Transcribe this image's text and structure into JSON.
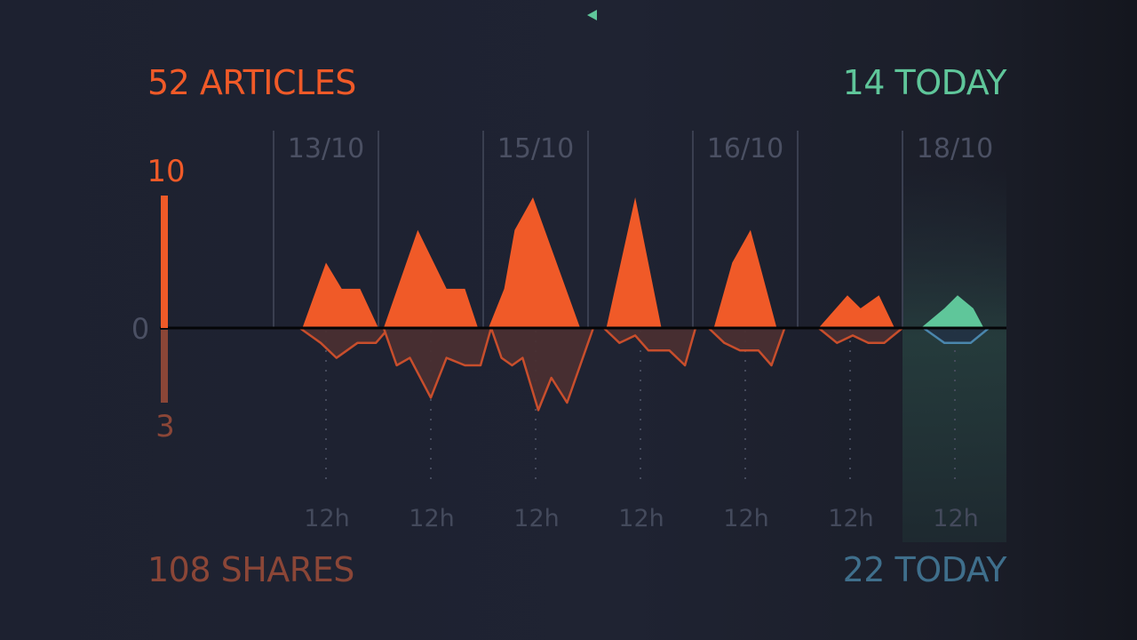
{
  "header": {
    "articles_total": "52 ARTICLES",
    "articles_today": "14 TODAY"
  },
  "footer": {
    "shares_total": "108 SHARES",
    "shares_today": "22 TODAY"
  },
  "colors": {
    "articles": "#f05a28",
    "shares": "#8b4637",
    "today_articles": "#5fc69a",
    "today_shares": "#3f6f8c",
    "grid": "#3a3f50",
    "label": "#4b5063",
    "baseline": "#050608"
  },
  "chart_data": {
    "type": "area",
    "x_tick_labels": [
      "13/10",
      "15/10",
      "16/10",
      "18/10"
    ],
    "hour_labels": [
      "12h",
      "12h",
      "12h",
      "12h",
      "12h",
      "12h",
      "12h"
    ],
    "y_axis": {
      "articles_max_label": "10",
      "zero_label": "0",
      "shares_max_label": "3",
      "articles_max": 10,
      "shares_max": 3
    },
    "series": [
      {
        "name": "articles",
        "days": [
          [
            [
              0,
              0
            ],
            [
              0.55,
              0
            ],
            [
              1.0,
              5
            ],
            [
              1.3,
              3
            ],
            [
              1.65,
              3
            ],
            [
              2.0,
              0
            ]
          ],
          [
            [
              0,
              0
            ],
            [
              0.1,
              0
            ],
            [
              0.75,
              7.5
            ],
            [
              1.3,
              3
            ],
            [
              1.65,
              3
            ],
            [
              1.9,
              0
            ]
          ],
          [
            [
              0,
              0
            ],
            [
              0.1,
              0
            ],
            [
              0.4,
              3
            ],
            [
              0.6,
              7.5
            ],
            [
              0.95,
              10
            ],
            [
              1.85,
              0
            ],
            [
              2.0,
              0
            ]
          ],
          [
            [
              0,
              0
            ],
            [
              0.35,
              0
            ],
            [
              0.9,
              10
            ],
            [
              1.4,
              0
            ],
            [
              2.0,
              0
            ]
          ],
          [
            [
              0,
              0
            ],
            [
              0.4,
              0
            ],
            [
              0.75,
              5
            ],
            [
              1.1,
              7.5
            ],
            [
              1.6,
              0
            ],
            [
              2.0,
              0
            ]
          ],
          [
            [
              0,
              0
            ],
            [
              0.4,
              0
            ],
            [
              0.95,
              2.5
            ],
            [
              1.2,
              1.5
            ],
            [
              1.55,
              2.5
            ],
            [
              1.85,
              0
            ],
            [
              2.0,
              0
            ]
          ],
          [
            [
              0,
              0
            ],
            [
              0.35,
              0
            ],
            [
              0.8,
              1.5
            ],
            [
              1.05,
              2.5
            ],
            [
              1.35,
              1.5
            ],
            [
              1.55,
              0
            ]
          ]
        ]
      },
      {
        "name": "shares",
        "days": [
          [
            [
              0,
              0
            ],
            [
              0.5,
              0
            ],
            [
              0.9,
              0.6
            ],
            [
              1.2,
              1.2
            ],
            [
              1.6,
              0.6
            ],
            [
              1.95,
              0.6
            ],
            [
              2.2,
              0
            ]
          ],
          [
            [
              0,
              0
            ],
            [
              0.1,
              0
            ],
            [
              0.35,
              1.5
            ],
            [
              0.6,
              1.2
            ],
            [
              1.0,
              2.8
            ],
            [
              1.3,
              1.2
            ],
            [
              1.65,
              1.5
            ],
            [
              1.95,
              1.5
            ],
            [
              2.15,
              0
            ]
          ],
          [
            [
              0,
              0
            ],
            [
              0.15,
              0
            ],
            [
              0.35,
              1.2
            ],
            [
              0.55,
              1.5
            ],
            [
              0.75,
              1.2
            ],
            [
              1.05,
              3.3
            ],
            [
              1.3,
              2.0
            ],
            [
              1.6,
              3.0
            ],
            [
              2.1,
              0
            ]
          ],
          [
            [
              0,
              0
            ],
            [
              0.3,
              0
            ],
            [
              0.6,
              0.6
            ],
            [
              0.9,
              0.3
            ],
            [
              1.15,
              0.9
            ],
            [
              1.55,
              0.9
            ],
            [
              1.85,
              1.5
            ],
            [
              2.05,
              0
            ]
          ],
          [
            [
              0,
              0
            ],
            [
              0.3,
              0
            ],
            [
              0.6,
              0.6
            ],
            [
              0.9,
              0.9
            ],
            [
              1.25,
              0.9
            ],
            [
              1.5,
              1.5
            ],
            [
              1.75,
              0
            ]
          ],
          [
            [
              0,
              0
            ],
            [
              0.4,
              0
            ],
            [
              0.75,
              0.6
            ],
            [
              1.05,
              0.3
            ],
            [
              1.35,
              0.6
            ],
            [
              1.65,
              0.6
            ],
            [
              2.0,
              0
            ]
          ],
          [
            [
              0,
              0
            ],
            [
              0.4,
              0
            ],
            [
              0.8,
              0.6
            ],
            [
              1.3,
              0.6
            ],
            [
              1.65,
              0
            ]
          ]
        ]
      }
    ]
  }
}
